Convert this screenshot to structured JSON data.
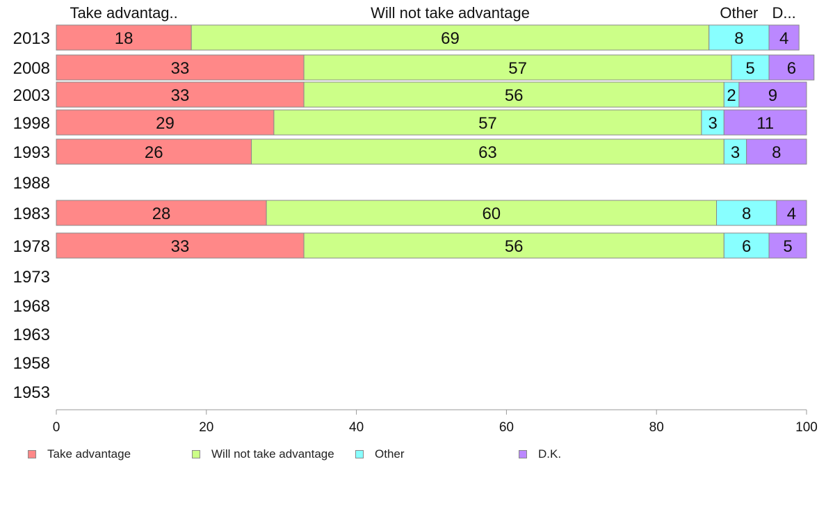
{
  "chart_data": {
    "type": "bar",
    "orientation": "horizontal",
    "stacked": true,
    "categories": [
      "2013",
      "2008",
      "2003",
      "1998",
      "1993",
      "1988",
      "1983",
      "1978",
      "1973",
      "1968",
      "1963",
      "1958",
      "1953"
    ],
    "series": [
      {
        "name": "Take advantage",
        "header": "Take advantag..",
        "color": "#ff8888",
        "values": [
          18,
          33,
          33,
          29,
          26,
          null,
          28,
          33,
          null,
          null,
          null,
          null,
          null
        ]
      },
      {
        "name": "Will not take advantage",
        "header": "Will not take advantage",
        "color": "#ccff88",
        "values": [
          69,
          57,
          56,
          57,
          63,
          null,
          60,
          56,
          null,
          null,
          null,
          null,
          null
        ]
      },
      {
        "name": "Other",
        "header": "Other",
        "color": "#88ffff",
        "values": [
          8,
          5,
          2,
          3,
          3,
          null,
          8,
          6,
          null,
          null,
          null,
          null,
          null
        ]
      },
      {
        "name": "D.K.",
        "header": "D...",
        "color": "#bb88ff",
        "values": [
          4,
          6,
          9,
          11,
          8,
          null,
          4,
          5,
          null,
          null,
          null,
          null,
          null
        ]
      }
    ],
    "xlim": [
      0,
      100
    ],
    "xticks": [
      "0",
      "20",
      "40",
      "60",
      "80",
      "100"
    ],
    "legend_position": "bottom",
    "grid": false
  }
}
